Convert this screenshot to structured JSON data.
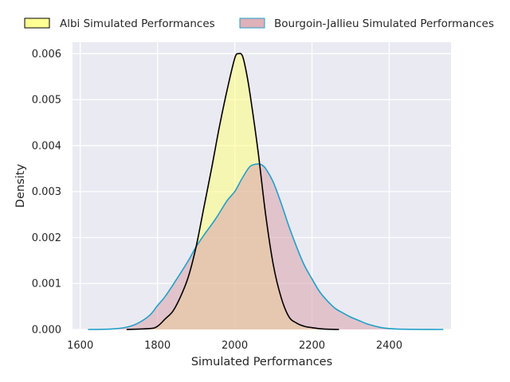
{
  "chart_data": {
    "type": "area",
    "subtype": "kde-density",
    "xlabel": "Simulated Performances",
    "ylabel": "Density",
    "xlim": [
      1580,
      2560
    ],
    "ylim": [
      0,
      0.00625
    ],
    "xticks": [
      1600,
      1800,
      2000,
      2200,
      2400
    ],
    "xtick_labels": [
      "1600",
      "1800",
      "2000",
      "2200",
      "2400"
    ],
    "yticks": [
      0,
      0.001,
      0.002,
      0.003,
      0.004,
      0.005,
      0.006
    ],
    "ytick_labels": [
      "0.000",
      "0.001",
      "0.002",
      "0.003",
      "0.004",
      "0.005",
      "0.006"
    ],
    "grid": true,
    "legend_position": "top-center, above plot, 2 columns",
    "background": "#eaeaf2",
    "series": [
      {
        "name": "Albi Simulated Performances",
        "fill": "#ffff80",
        "fill_opacity": 0.55,
        "line": "#000000",
        "x": [
          1720,
          1780,
          1800,
          1820,
          1840,
          1860,
          1880,
          1900,
          1920,
          1940,
          1960,
          1980,
          2000,
          2010,
          2020,
          2030,
          2040,
          2060,
          2080,
          2100,
          2120,
          2140,
          2160,
          2180,
          2200,
          2230,
          2270
        ],
        "y": [
          0,
          2e-05,
          7e-05,
          0.00023,
          0.0004,
          0.00072,
          0.00115,
          0.0018,
          0.00265,
          0.0035,
          0.0044,
          0.0052,
          0.0059,
          0.006,
          0.00595,
          0.0056,
          0.0051,
          0.0039,
          0.0025,
          0.0014,
          0.0007,
          0.00028,
          0.00014,
          7e-05,
          4e-05,
          1e-05,
          0
        ]
      },
      {
        "name": "Bourgoin-Jallieu Simulated Performances",
        "fill": "#d9a3ad",
        "fill_opacity": 0.55,
        "line": "#20a0c8",
        "x": [
          1620,
          1680,
          1720,
          1750,
          1780,
          1800,
          1820,
          1850,
          1880,
          1900,
          1920,
          1950,
          1980,
          2000,
          2020,
          2040,
          2060,
          2070,
          2080,
          2100,
          2120,
          2140,
          2160,
          2180,
          2200,
          2220,
          2240,
          2260,
          2280,
          2300,
          2320,
          2340,
          2360,
          2380,
          2400,
          2420,
          2450,
          2490,
          2540
        ],
        "y": [
          0,
          1e-05,
          5e-05,
          0.00014,
          0.00031,
          0.00052,
          0.00072,
          0.0011,
          0.0015,
          0.0018,
          0.00205,
          0.0024,
          0.0028,
          0.003,
          0.0033,
          0.00355,
          0.0036,
          0.00358,
          0.0035,
          0.0032,
          0.00275,
          0.00225,
          0.0018,
          0.0014,
          0.0011,
          0.00082,
          0.00062,
          0.00046,
          0.00036,
          0.00027,
          0.0002,
          0.00013,
          8e-05,
          4e-05,
          2e-05,
          1e-05,
          4e-06,
          1e-06,
          0
        ]
      }
    ]
  }
}
